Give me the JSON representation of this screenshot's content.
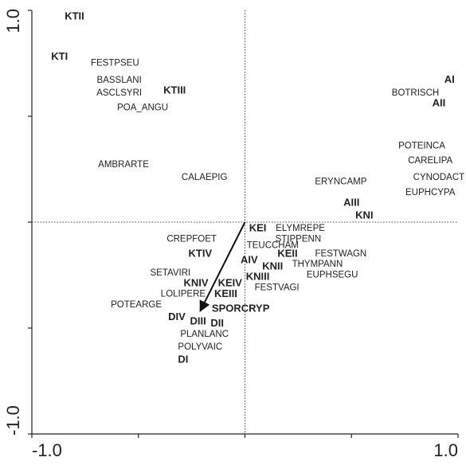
{
  "chart_data": {
    "type": "scatter",
    "xlim": [
      -1,
      1
    ],
    "ylim": [
      -1,
      1
    ],
    "xticks": [
      {
        "value": -1,
        "label": "-1.0"
      },
      {
        "value": 1,
        "label": "1.0"
      }
    ],
    "yticks": [
      {
        "value": -1,
        "label": "-1.0"
      },
      {
        "value": 1,
        "label": "1.0"
      }
    ],
    "xminor": [
      -0.5,
      0,
      0.5
    ],
    "yminor": [
      -0.5,
      0,
      0.5
    ],
    "zero_lines": true,
    "arrow": {
      "x": -0.21,
      "y": -0.42
    },
    "series": [
      {
        "bold": true,
        "labels": [
          "KTII",
          "KTI",
          "KTIII",
          "AI",
          "AII",
          "AIII",
          "KNI",
          "KEI",
          "KTIV",
          "AIV",
          "KNII",
          "KEII",
          "KNIII",
          "KNIV",
          "KEIV",
          "KEIII",
          "SPORCRYP",
          "DIV",
          "DIII",
          "DII",
          "DI"
        ],
        "x": [
          -0.8,
          -0.87,
          -0.33,
          0.96,
          0.91,
          0.5,
          0.56,
          0.06,
          -0.21,
          0.02,
          0.13,
          0.2,
          0.06,
          -0.23,
          -0.07,
          -0.09,
          -0.02,
          -0.32,
          -0.22,
          -0.13,
          -0.29
        ],
        "y": [
          0.97,
          0.78,
          0.62,
          0.67,
          0.56,
          0.09,
          0.03,
          -0.03,
          -0.15,
          -0.18,
          -0.21,
          -0.15,
          -0.26,
          -0.29,
          -0.29,
          -0.34,
          -0.41,
          -0.45,
          -0.47,
          -0.48,
          -0.65
        ]
      },
      {
        "bold": false,
        "labels": [
          "FESTPSEU",
          "BASSLANI",
          "ASCLSYRI",
          "POA_ANGU",
          "BOTRISCH",
          "POTEINCA",
          "CARELIPA",
          "CYNODACT",
          "EUPHCYPA",
          "ERYNCAMP",
          "AMBRARTE",
          "CALAEPIG",
          "ELYMREPE",
          "STIPPENN",
          "TEUCCHAM",
          "FESTWAGN",
          "THYMPANN",
          "EUPHSEGU",
          "FESTVAGI",
          "CREPFOET",
          "SETAVIRI",
          "LOLIPERE",
          "POTEARGE",
          "PLANLANC",
          "POLYVAIC"
        ],
        "x": [
          -0.61,
          -0.59,
          -0.59,
          -0.48,
          0.8,
          0.83,
          0.87,
          0.91,
          0.87,
          0.45,
          -0.57,
          -0.19,
          0.26,
          0.25,
          0.13,
          0.45,
          0.34,
          0.41,
          0.15,
          -0.25,
          -0.35,
          -0.29,
          -0.51,
          -0.19,
          -0.21
        ],
        "y": [
          0.75,
          0.67,
          0.61,
          0.54,
          0.61,
          0.36,
          0.29,
          0.21,
          0.14,
          0.19,
          0.27,
          0.21,
          -0.03,
          -0.08,
          -0.11,
          -0.15,
          -0.2,
          -0.25,
          -0.31,
          -0.08,
          -0.24,
          -0.34,
          -0.39,
          -0.53,
          -0.59
        ]
      }
    ]
  }
}
